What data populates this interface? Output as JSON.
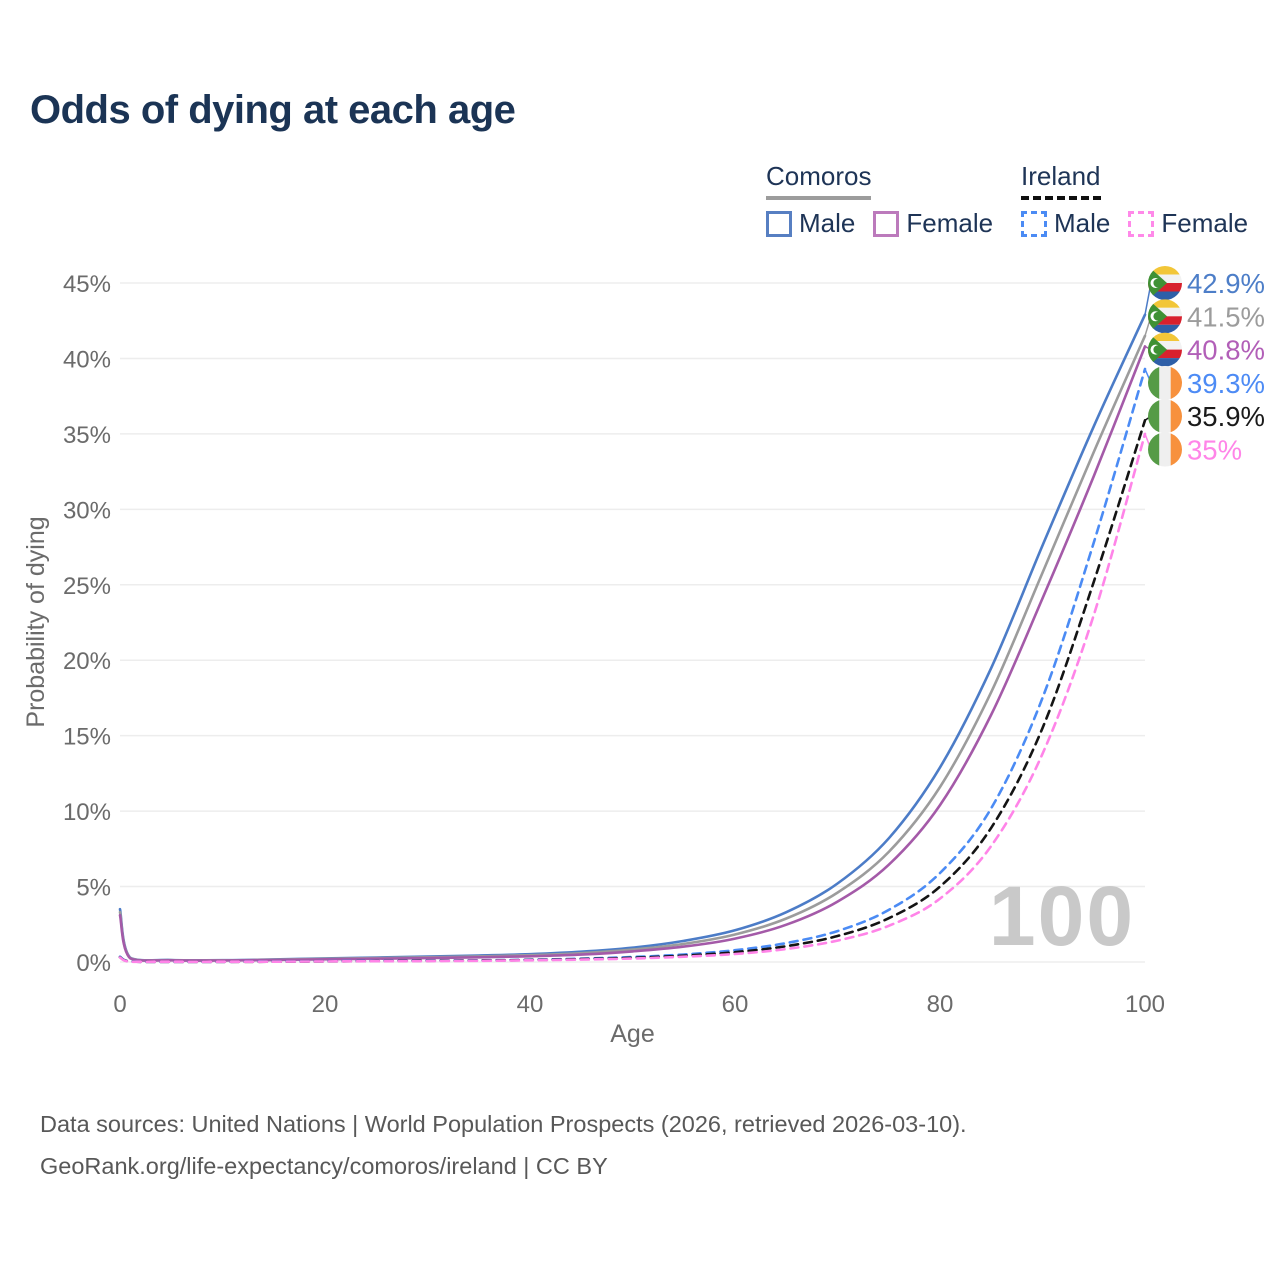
{
  "title": "Odds of dying at each age",
  "legend": {
    "groups": [
      {
        "name": "Comoros",
        "line_style": "solid",
        "underline_color": "#9c9c9c",
        "items": [
          {
            "label": "Male",
            "color": "#577fc2"
          },
          {
            "label": "Female",
            "color": "#bc7abc"
          }
        ]
      },
      {
        "name": "Ireland",
        "line_style": "dashed",
        "underline_color": "#0f0f0f",
        "items": [
          {
            "label": "Male",
            "color": "#4b8bf4"
          },
          {
            "label": "Female",
            "color": "#ff89e9"
          }
        ]
      }
    ]
  },
  "chart_data": {
    "type": "line",
    "title": "Odds of dying at each age",
    "xlabel": "Age",
    "ylabel": "Probability of dying",
    "xlim": [
      0,
      100
    ],
    "ylim": [
      0,
      45
    ],
    "grid": "horizontal",
    "watermark": "100",
    "x_ticks": [
      0,
      20,
      40,
      60,
      80,
      100
    ],
    "y_ticks": [
      {
        "value": 0,
        "label": "0%"
      },
      {
        "value": 5,
        "label": "5%"
      },
      {
        "value": 10,
        "label": "10%"
      },
      {
        "value": 15,
        "label": "15%"
      },
      {
        "value": 20,
        "label": "20%"
      },
      {
        "value": 25,
        "label": "25%"
      },
      {
        "value": 30,
        "label": "30%"
      },
      {
        "value": 35,
        "label": "35%"
      },
      {
        "value": 40,
        "label": "40%"
      },
      {
        "value": 45,
        "label": "45%"
      }
    ],
    "ages": [
      0,
      1,
      5,
      10,
      15,
      20,
      25,
      30,
      35,
      40,
      45,
      50,
      55,
      60,
      65,
      70,
      75,
      80,
      85,
      90,
      95,
      100
    ],
    "series": [
      {
        "name": "Comoros — Male",
        "country": "Comoros",
        "sex": "Male",
        "line": "solid",
        "color": "#4c7cc7",
        "label_color": "#4d7ec8",
        "end_label": "42.9%",
        "flag_icon": "comoros-flag-icon",
        "values": [
          3.5,
          0.28,
          0.13,
          0.12,
          0.17,
          0.24,
          0.3,
          0.36,
          0.43,
          0.52,
          0.68,
          0.95,
          1.4,
          2.1,
          3.3,
          5.2,
          8.2,
          12.9,
          19.5,
          27.6,
          35.5,
          42.9
        ]
      },
      {
        "name": "Comoros — Both sexes",
        "country": "Comoros",
        "sex": "Both",
        "line": "solid",
        "color": "#9c9c9c",
        "label_color": "#9c9c9c",
        "end_label": "41.5%",
        "flag_icon": "comoros-flag-icon",
        "values": [
          3.3,
          0.26,
          0.12,
          0.11,
          0.15,
          0.21,
          0.26,
          0.31,
          0.37,
          0.45,
          0.58,
          0.82,
          1.2,
          1.82,
          2.88,
          4.6,
          7.3,
          11.6,
          17.9,
          25.8,
          33.8,
          41.5
        ]
      },
      {
        "name": "Comoros — Female",
        "country": "Comoros",
        "sex": "Female",
        "line": "solid",
        "color": "#a45aa8",
        "label_color": "#b25fb8",
        "end_label": "40.8%",
        "flag_icon": "comoros-flag-icon",
        "values": [
          3.1,
          0.24,
          0.11,
          0.1,
          0.13,
          0.18,
          0.22,
          0.26,
          0.31,
          0.38,
          0.49,
          0.7,
          1.02,
          1.55,
          2.47,
          4.0,
          6.45,
          10.4,
          16.4,
          24.1,
          32.2,
          40.8
        ]
      },
      {
        "name": "Ireland — Male",
        "country": "Ireland",
        "sex": "Male",
        "line": "dashed",
        "color": "#4b8bf4",
        "label_color": "#4d8bf5",
        "end_label": "39.3%",
        "flag_icon": "ireland-flag-icon",
        "values": [
          0.35,
          0.03,
          0.01,
          0.01,
          0.03,
          0.05,
          0.07,
          0.09,
          0.11,
          0.15,
          0.22,
          0.33,
          0.5,
          0.78,
          1.25,
          2.05,
          3.45,
          5.9,
          10.2,
          17.5,
          27.8,
          39.3
        ]
      },
      {
        "name": "Ireland — Both sexes",
        "country": "Ireland",
        "sex": "Both",
        "line": "dashed",
        "color": "#141414",
        "label_color": "#1a1a1a",
        "end_label": "35.9%",
        "flag_icon": "ireland-flag-icon",
        "values": [
          0.32,
          0.03,
          0.01,
          0.01,
          0.02,
          0.04,
          0.06,
          0.08,
          0.1,
          0.13,
          0.19,
          0.28,
          0.42,
          0.65,
          1.05,
          1.72,
          2.9,
          5.0,
          8.9,
          15.5,
          25.2,
          35.9
        ]
      },
      {
        "name": "Ireland — Female",
        "country": "Ireland",
        "sex": "Female",
        "line": "dashed",
        "color": "#ff84e8",
        "label_color": "#ff85e8",
        "end_label": "35%",
        "flag_icon": "ireland-flag-icon",
        "values": [
          0.3,
          0.02,
          0.01,
          0.01,
          0.02,
          0.04,
          0.05,
          0.06,
          0.08,
          0.11,
          0.16,
          0.23,
          0.35,
          0.53,
          0.86,
          1.42,
          2.4,
          4.2,
          7.7,
          13.8,
          23.0,
          35.0
        ]
      }
    ]
  },
  "flag_colors": {
    "comoros": {
      "yellow": "#f2c638",
      "white": "#f2f2f2",
      "red": "#d7212e",
      "blue": "#2e5fa8",
      "green": "#3f9134"
    },
    "ireland": {
      "green": "#559b46",
      "white": "#efefef",
      "orange": "#f7913d"
    }
  },
  "style": {
    "grid_color": "#ededed",
    "tick_color": "#6b6b6b",
    "watermark_color": "#c9c9c9"
  },
  "footer": {
    "line1": "Data sources: United Nations | World Population Prospects (2026, retrieved 2026-03-10).",
    "line2": "GeoRank.org/life-expectancy/comoros/ireland | CC BY"
  }
}
